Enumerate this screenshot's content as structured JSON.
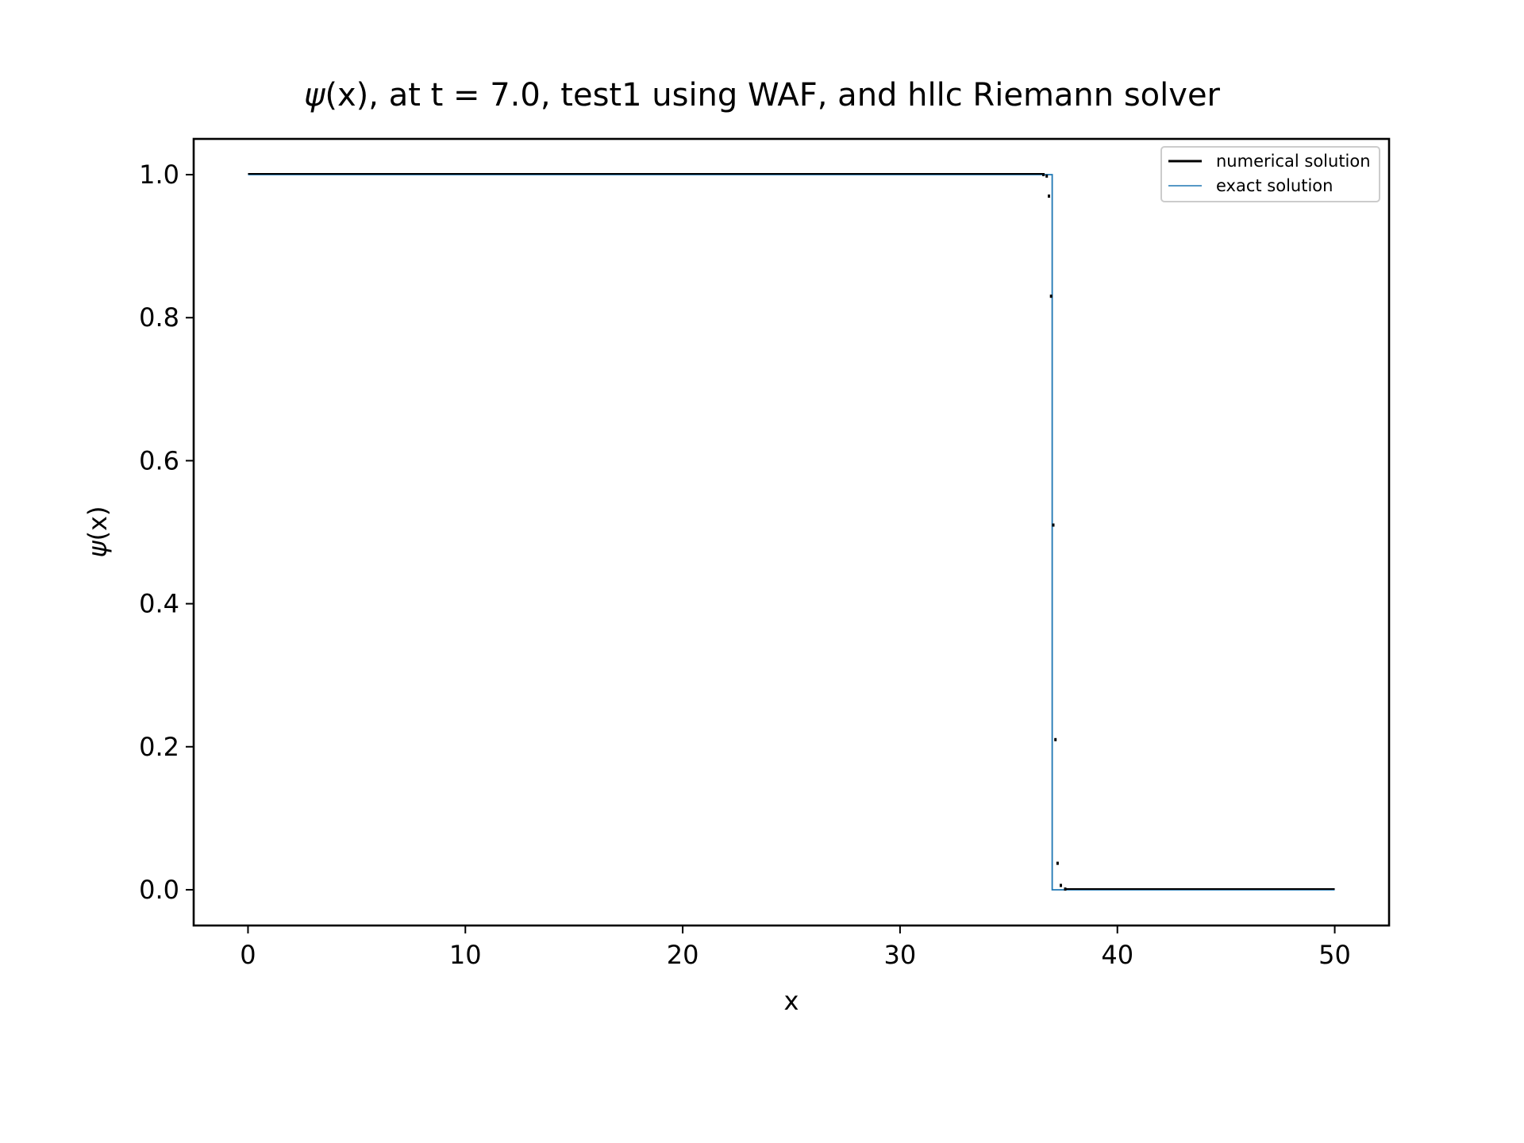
{
  "chart_data": {
    "type": "line",
    "title_prefix": "ψ",
    "title_suffix": "(x), at t = 7.0, test1 using WAF, and hllc Riemann solver",
    "xlabel": "x",
    "ylabel_prefix": "ψ",
    "ylabel_suffix": "(x)",
    "xlim": [
      -2.5,
      52.5
    ],
    "ylim": [
      -0.05,
      1.05
    ],
    "x_ticks": [
      0,
      10,
      20,
      30,
      40,
      50
    ],
    "x_tick_labels": [
      "0",
      "10",
      "20",
      "30",
      "40",
      "50"
    ],
    "y_ticks": [
      0.0,
      0.2,
      0.4,
      0.6,
      0.8,
      1.0
    ],
    "y_tick_labels": [
      "0.0",
      "0.2",
      "0.4",
      "0.6",
      "0.8",
      "1.0"
    ],
    "grid": false,
    "legend_position": "top-right",
    "series": [
      {
        "name": "numerical solution",
        "color": "#000000",
        "style": "dotted-points",
        "x": [
          0,
          36.6,
          36.75,
          36.85,
          36.95,
          37.05,
          37.15,
          37.25,
          37.4,
          37.6,
          50
        ],
        "y": [
          1.0,
          1.0,
          0.998,
          0.97,
          0.83,
          0.51,
          0.21,
          0.037,
          0.006,
          0.001,
          0.001
        ]
      },
      {
        "name": "exact solution",
        "color": "#1f77b4",
        "style": "line",
        "x": [
          0,
          37.0,
          37.0,
          50
        ],
        "y": [
          1.0,
          1.0,
          0.0,
          0.0
        ]
      }
    ]
  }
}
